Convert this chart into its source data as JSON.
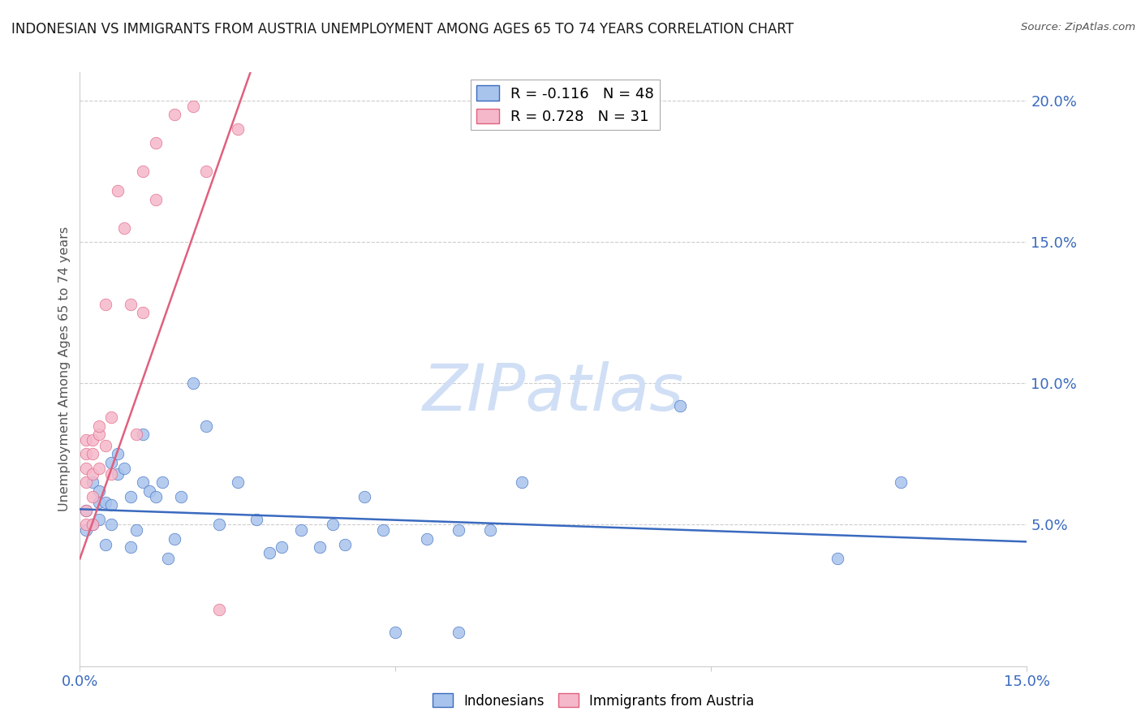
{
  "title": "INDONESIAN VS IMMIGRANTS FROM AUSTRIA UNEMPLOYMENT AMONG AGES 65 TO 74 YEARS CORRELATION CHART",
  "source": "Source: ZipAtlas.com",
  "ylabel": "Unemployment Among Ages 65 to 74 years",
  "xlim": [
    0.0,
    0.15
  ],
  "ylim": [
    0.0,
    0.21
  ],
  "yticks": [
    0.05,
    0.1,
    0.15,
    0.2
  ],
  "ytick_labels": [
    "5.0%",
    "10.0%",
    "15.0%",
    "20.0%"
  ],
  "legend_r1": "R = -0.116",
  "legend_n1": "N = 48",
  "legend_r2": "R = 0.728",
  "legend_n2": "N = 31",
  "blue_scatter_color": "#a8c4ed",
  "pink_scatter_color": "#f5b8cb",
  "blue_line_color": "#3a6abf",
  "pink_line_color": "#e0607e",
  "title_color": "#1a1a1a",
  "axis_label_color": "#555555",
  "tick_color": "#3a6abf",
  "grid_color": "#cccccc",
  "watermark_color": "#d0dff5",
  "indonesian_x": [
    0.001,
    0.001,
    0.002,
    0.002,
    0.003,
    0.003,
    0.003,
    0.004,
    0.004,
    0.005,
    0.005,
    0.005,
    0.006,
    0.006,
    0.007,
    0.008,
    0.008,
    0.009,
    0.01,
    0.01,
    0.011,
    0.012,
    0.013,
    0.014,
    0.015,
    0.016,
    0.018,
    0.02,
    0.022,
    0.025,
    0.028,
    0.03,
    0.032,
    0.035,
    0.038,
    0.04,
    0.042,
    0.045,
    0.048,
    0.05,
    0.055,
    0.06,
    0.06,
    0.065,
    0.07,
    0.095,
    0.12,
    0.13
  ],
  "indonesian_y": [
    0.055,
    0.048,
    0.05,
    0.065,
    0.058,
    0.052,
    0.062,
    0.043,
    0.058,
    0.05,
    0.057,
    0.072,
    0.068,
    0.075,
    0.07,
    0.042,
    0.06,
    0.048,
    0.065,
    0.082,
    0.062,
    0.06,
    0.065,
    0.038,
    0.045,
    0.06,
    0.1,
    0.085,
    0.05,
    0.065,
    0.052,
    0.04,
    0.042,
    0.048,
    0.042,
    0.05,
    0.043,
    0.06,
    0.048,
    0.012,
    0.045,
    0.048,
    0.012,
    0.048,
    0.065,
    0.092,
    0.038,
    0.065
  ],
  "austria_x": [
    0.001,
    0.001,
    0.001,
    0.001,
    0.001,
    0.001,
    0.002,
    0.002,
    0.002,
    0.002,
    0.002,
    0.003,
    0.003,
    0.003,
    0.004,
    0.004,
    0.005,
    0.005,
    0.006,
    0.007,
    0.008,
    0.009,
    0.01,
    0.01,
    0.012,
    0.012,
    0.015,
    0.018,
    0.02,
    0.022,
    0.025
  ],
  "austria_y": [
    0.05,
    0.065,
    0.07,
    0.075,
    0.08,
    0.055,
    0.06,
    0.068,
    0.075,
    0.05,
    0.08,
    0.082,
    0.07,
    0.085,
    0.078,
    0.128,
    0.088,
    0.068,
    0.168,
    0.155,
    0.128,
    0.082,
    0.175,
    0.125,
    0.185,
    0.165,
    0.195,
    0.198,
    0.175,
    0.02,
    0.19
  ],
  "blue_line_x0": 0.0,
  "blue_line_y0": 0.0555,
  "blue_line_x1": 0.15,
  "blue_line_y1": 0.044,
  "pink_line_x0": 0.0,
  "pink_line_y0": 0.038,
  "pink_line_x1": 0.027,
  "pink_line_y1": 0.21
}
